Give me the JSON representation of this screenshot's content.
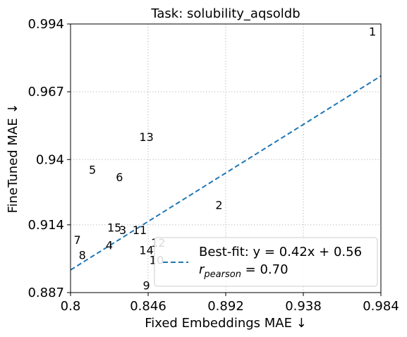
{
  "chart_data": {
    "type": "scatter",
    "title": "Task: solubility_aqsoldb",
    "xlabel": "Fixed Embeddings MAE ↓",
    "ylabel": "FineTuned MAE ↓",
    "xlim": [
      0.8,
      0.984
    ],
    "ylim": [
      0.887,
      0.994
    ],
    "xticks": [
      0.8,
      0.846,
      0.892,
      0.938,
      0.984
    ],
    "xtick_labels": [
      "0.8",
      "0.846",
      "0.892",
      "0.938",
      "0.984"
    ],
    "yticks": [
      0.887,
      0.914,
      0.94,
      0.967,
      0.994
    ],
    "ytick_labels": [
      "0.887",
      "0.914",
      "0.94",
      "0.967",
      "0.994"
    ],
    "grid": true,
    "points": [
      {
        "label": "1",
        "x": 0.979,
        "y": 0.991
      },
      {
        "label": "2",
        "x": 0.888,
        "y": 0.922
      },
      {
        "label": "3",
        "x": 0.831,
        "y": 0.912
      },
      {
        "label": "4",
        "x": 0.823,
        "y": 0.906
      },
      {
        "label": "5",
        "x": 0.813,
        "y": 0.936
      },
      {
        "label": "6",
        "x": 0.829,
        "y": 0.933
      },
      {
        "label": "7",
        "x": 0.804,
        "y": 0.908
      },
      {
        "label": "8",
        "x": 0.807,
        "y": 0.902
      },
      {
        "label": "9",
        "x": 0.845,
        "y": 0.89
      },
      {
        "label": "10",
        "x": 0.851,
        "y": 0.9
      },
      {
        "label": "11",
        "x": 0.841,
        "y": 0.912
      },
      {
        "label": "12",
        "x": 0.852,
        "y": 0.907
      },
      {
        "label": "13",
        "x": 0.845,
        "y": 0.949
      },
      {
        "label": "14",
        "x": 0.845,
        "y": 0.904
      },
      {
        "label": "15",
        "x": 0.826,
        "y": 0.913
      }
    ],
    "fit": {
      "slope": 0.42,
      "intercept": 0.56,
      "color": "#1f77b4",
      "style": "dashed"
    },
    "legend": {
      "placement": "lower-right",
      "fit_text": "Best-fit: y = 0.42x + 0.56",
      "r_text": "r = 0.70",
      "r_symbol": "r",
      "r_subscript": "pearson",
      "r_value": "= 0.70"
    }
  }
}
